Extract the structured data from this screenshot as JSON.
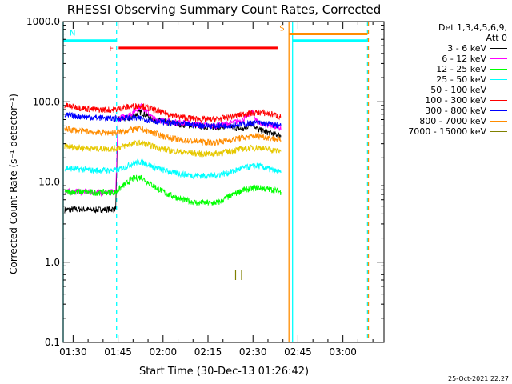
{
  "chart_data": {
    "type": "line",
    "title": "RHESSI Observing Summary Count Rates, Corrected",
    "xlabel": "Start Time (30-Dec-13 01:26:42)",
    "ylabel": "Corrected Count Rate (s⁻¹ detector⁻¹)",
    "yscale": "log",
    "ylim": [
      0.1,
      1000
    ],
    "xlim_minutes": [
      0,
      107
    ],
    "x_tick_minutes": [
      3.3,
      18.3,
      33.3,
      48.3,
      63.3,
      78.3,
      93.3
    ],
    "x_tick_labels": [
      "01:30",
      "01:45",
      "02:00",
      "02:15",
      "02:30",
      "02:45",
      "03:00"
    ],
    "y_tick_values": [
      0.1,
      1,
      10,
      100,
      1000
    ],
    "y_tick_labels": [
      "0.1",
      "1.0",
      "10.0",
      "100.0",
      "1000.0"
    ],
    "legend": {
      "header_line1": "Det 1,3,4,5,6,9,",
      "header_line2": "Att 0",
      "placement": "right"
    },
    "series": [
      {
        "name": "3 - 6 keV",
        "color": "#000000",
        "x": [
          0.5,
          5,
          10,
          17.5,
          18.3,
          22,
          26,
          30,
          35,
          40,
          45,
          50,
          55,
          60,
          63,
          65,
          70,
          72.6
        ],
        "values": [
          4.5,
          4.6,
          4.5,
          4.6,
          60,
          62,
          75,
          60,
          55,
          52,
          50,
          48,
          50,
          45,
          55,
          45,
          40,
          38
        ]
      },
      {
        "name": "6 - 12 keV",
        "color": "#ff00ff",
        "x": [
          0.5,
          5,
          10,
          17.5,
          18.3,
          22,
          26,
          30,
          35,
          40,
          45,
          50,
          55,
          60,
          63,
          65,
          70,
          72.6
        ],
        "values": [
          7.5,
          7.6,
          7.4,
          7.5,
          62,
          68,
          90,
          62,
          57,
          55,
          52,
          50,
          53,
          60,
          75,
          55,
          50,
          45
        ]
      },
      {
        "name": "12 - 25 keV",
        "color": "#00ff00",
        "x": [
          0.5,
          5,
          10,
          17.5,
          20,
          23,
          26,
          30,
          35,
          40,
          45,
          50,
          52,
          55,
          60,
          65,
          70,
          72.6
        ],
        "values": [
          7.5,
          7.6,
          7.4,
          7.5,
          9,
          11,
          11.5,
          9,
          7,
          6,
          5.5,
          5.5,
          5.6,
          6.5,
          8,
          8.5,
          8,
          7.5
        ]
      },
      {
        "name": "25 - 50 keV",
        "color": "#00ffff",
        "x": [
          0.5,
          5,
          10,
          17.5,
          20,
          23,
          26,
          30,
          35,
          40,
          45,
          50,
          55,
          60,
          65,
          70,
          72.6
        ],
        "values": [
          15,
          14.5,
          14,
          14,
          15,
          17,
          18,
          15.5,
          13.5,
          12.5,
          12,
          12,
          13,
          15,
          16,
          14,
          13
        ]
      },
      {
        "name": "50 - 100 keV",
        "color": "#e6c800",
        "x": [
          0.5,
          5,
          10,
          17.5,
          20,
          23,
          26,
          30,
          35,
          40,
          45,
          50,
          55,
          60,
          65,
          70,
          72.6
        ],
        "values": [
          28,
          27,
          26,
          26,
          28,
          30,
          31,
          28,
          25,
          23.5,
          22.5,
          22.5,
          24,
          26,
          27,
          25,
          24
        ]
      },
      {
        "name": "100 - 300 keV",
        "color": "#ff0000",
        "x": [
          0.5,
          5,
          10,
          17.5,
          20,
          23,
          26,
          30,
          35,
          40,
          45,
          50,
          55,
          60,
          65,
          70,
          72.6
        ],
        "values": [
          90,
          85,
          80,
          80,
          85,
          88,
          90,
          80,
          70,
          64,
          61,
          60,
          64,
          70,
          74,
          70,
          65
        ]
      },
      {
        "name": "300 - 800 keV",
        "color": "#0000ff",
        "x": [
          0.5,
          5,
          10,
          17.5,
          20,
          23,
          26,
          30,
          35,
          40,
          45,
          50,
          55,
          60,
          65,
          70,
          72.6
        ],
        "values": [
          68,
          66,
          64,
          62,
          63,
          63,
          62,
          58,
          55,
          53,
          51,
          50,
          51,
          53,
          55,
          52,
          50
        ]
      },
      {
        "name": "800 - 7000 keV",
        "color": "#ff8c00",
        "x": [
          0.5,
          5,
          10,
          17.5,
          20,
          23,
          26,
          30,
          35,
          40,
          45,
          50,
          55,
          60,
          65,
          70,
          72.6
        ],
        "values": [
          46,
          44,
          42,
          41,
          43,
          45,
          46,
          41,
          36,
          33,
          32,
          31,
          33,
          36,
          38,
          35,
          33
        ]
      },
      {
        "name": "7000 - 15000 keV",
        "color": "#808000",
        "x": [
          57.5,
          58.0,
          59.5,
          60.0
        ],
        "values": [
          0.8,
          0.75,
          0.8,
          0.75
        ]
      }
    ],
    "flags": [
      {
        "label": "N",
        "label_color": "#00ffff",
        "color": "#00ffff",
        "x_start": 0,
        "x_end": 17.8,
        "y": 580,
        "style": "solid"
      },
      {
        "label": "F",
        "label_color": "#ff0000",
        "color": "#ff0000",
        "x_start": 18.5,
        "x_end": 71.5,
        "y": 470,
        "style": "solid"
      },
      {
        "label": "S",
        "label_color": "#ff8c00",
        "color": "#ff8c00",
        "x_start": 75.3,
        "x_end": 101.5,
        "y": 700,
        "style": "solid"
      },
      {
        "label": "",
        "label_color": "#00ffff",
        "color": "#00ffff",
        "x_start": 76.5,
        "x_end": 101.5,
        "y": 580,
        "style": "solid"
      }
    ],
    "vlines": [
      {
        "x": 0,
        "color": "#00ffff",
        "style": "solid"
      },
      {
        "x": 17.8,
        "color": "#00ffff",
        "style": "dashed"
      },
      {
        "x": 75.3,
        "color": "#ff8c00",
        "style": "solid"
      },
      {
        "x": 76.5,
        "color": "#00ffff",
        "style": "solid"
      },
      {
        "x": 101.5,
        "color": "#00ffff",
        "style": "dashed"
      },
      {
        "x": 101.8,
        "color": "#ff8c00",
        "style": "dashed"
      }
    ]
  },
  "timestamp": "25-Oct-2021 22:27"
}
